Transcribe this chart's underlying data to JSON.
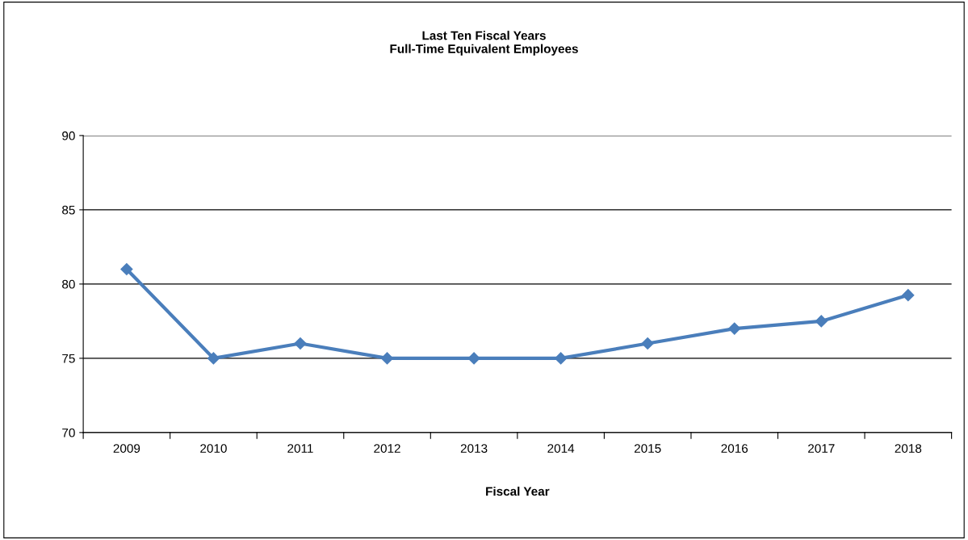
{
  "chart_data": {
    "type": "line",
    "title": "Last Ten Fiscal Years\nFull-Time Equivalent Employees",
    "xlabel": "Fiscal Year",
    "categories": [
      "2009",
      "2010",
      "2011",
      "2012",
      "2013",
      "2014",
      "2015",
      "2016",
      "2017",
      "2018"
    ],
    "series": [
      {
        "color": "#4a7ebb",
        "values": [
          81,
          75,
          76,
          75,
          75,
          75,
          76,
          77,
          77.5,
          79.25
        ]
      }
    ],
    "ylim": [
      70,
      90
    ],
    "yticks": [
      70,
      75,
      80,
      85,
      90
    ],
    "grid": "y",
    "marker": "diamond",
    "line_style": "solid"
  }
}
